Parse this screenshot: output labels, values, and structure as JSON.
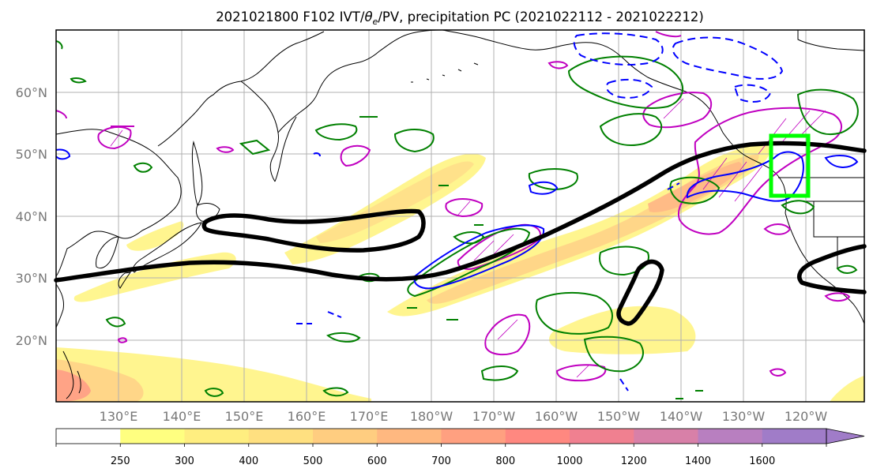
{
  "figure": {
    "title_main": "2021021800 F102 IVT/",
    "title_theta": "θ",
    "title_sub": "e",
    "title_rest": "/PV, precipitation PC (2021022112 - 2021022212)"
  },
  "axes": {
    "lat_labels": [
      "60°N",
      "50°N",
      "40°N",
      "30°N",
      "20°N"
    ],
    "lon_labels": [
      "130°E",
      "140°E",
      "150°E",
      "160°E",
      "170°E",
      "180°W",
      "170°W",
      "160°W",
      "150°W",
      "140°W",
      "130°W",
      "120°W"
    ]
  },
  "colorbar": {
    "ticks": [
      "250",
      "300",
      "400",
      "500",
      "600",
      "700",
      "800",
      "1000",
      "1200",
      "1400",
      "1600"
    ],
    "colors": [
      "#ffffff",
      "#ffff80",
      "#ffee80",
      "#ffe080",
      "#ffcd80",
      "#ffb880",
      "#ffa080",
      "#ff8880",
      "#f08090",
      "#d880a8",
      "#b87fc0",
      "#a07cc8"
    ]
  },
  "colors": {
    "ivt_contour": "#000000",
    "pv_positive": "#008000",
    "pv_negative": "#0000ff",
    "theta_e": "#c000c0",
    "region_box": "#00ff00",
    "coastline": "#000000"
  }
}
